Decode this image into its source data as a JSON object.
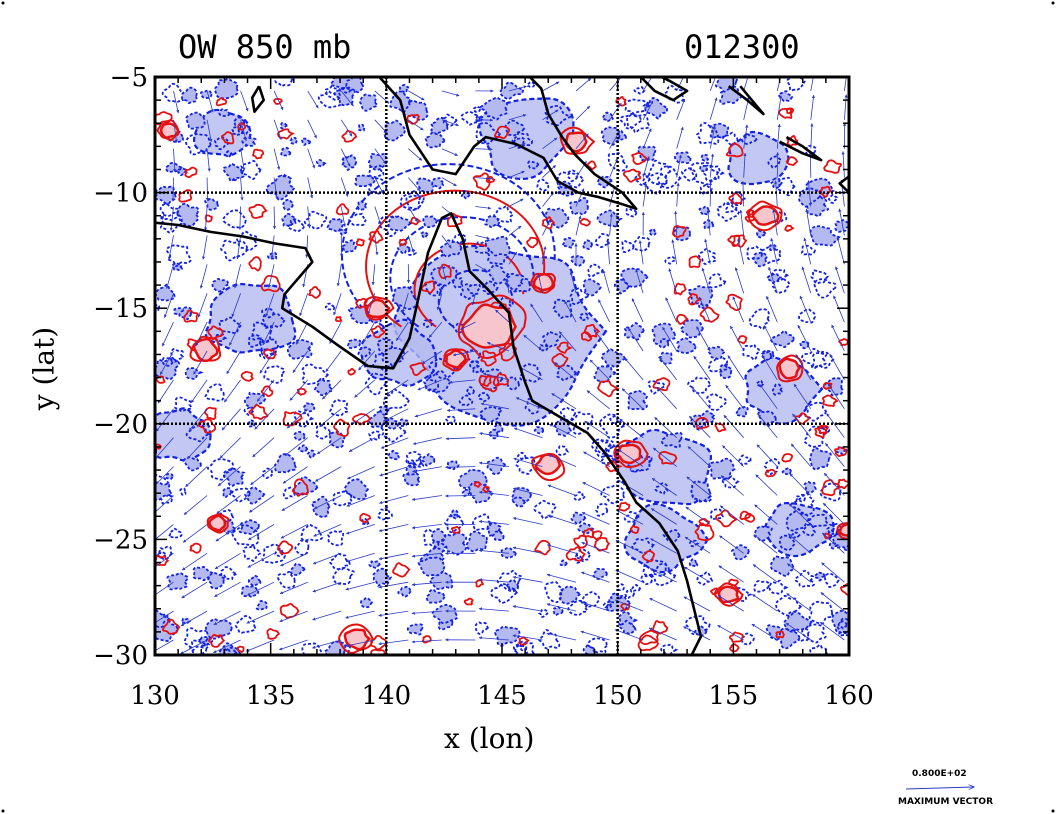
{
  "chart_data": {
    "type": "map",
    "title_left": "OW 850 mb",
    "title_right": "012300",
    "xlabel": "x (lon)",
    "ylabel": "y (lat)",
    "xlim": [
      130,
      160
    ],
    "ylim": [
      -30,
      -5
    ],
    "x_ticks": [
      "130",
      "135",
      "140",
      "145",
      "150",
      "155",
      "160"
    ],
    "y_ticks": [
      "−5",
      "−10",
      "−15",
      "−20",
      "−25",
      "−30"
    ],
    "grid_lines": {
      "lon": [
        140,
        150
      ],
      "lat": [
        -10,
        -20
      ]
    },
    "vector_key": {
      "value_label": "0.800E+02",
      "caption": "MAXIMUM VECTOR"
    },
    "colors": {
      "negative_fill": "#b4b9f0",
      "negative_contour": "#1020e6",
      "positive_fill": "#f6c6cc",
      "positive_contour": "#e61010",
      "coastline": "#000000",
      "vectors": "#2a3ac8"
    },
    "features": {
      "cyclone_center": {
        "lon": 144.5,
        "lat": -15.8
      },
      "positive_cells": [
        {
          "lon": 144.5,
          "lat": -15.8,
          "r": 1.1
        },
        {
          "lon": 148.2,
          "lat": -7.8,
          "r": 0.5
        },
        {
          "lon": 139.6,
          "lat": -15.0,
          "r": 0.45
        },
        {
          "lon": 132.2,
          "lat": -16.8,
          "r": 0.5
        },
        {
          "lon": 130.6,
          "lat": -7.3,
          "r": 0.35
        },
        {
          "lon": 156.4,
          "lat": -11.0,
          "r": 0.5
        },
        {
          "lon": 157.4,
          "lat": -17.6,
          "r": 0.45
        },
        {
          "lon": 150.5,
          "lat": -21.3,
          "r": 0.5
        },
        {
          "lon": 147.0,
          "lat": -21.8,
          "r": 0.5
        },
        {
          "lon": 154.8,
          "lat": -27.4,
          "r": 0.4
        },
        {
          "lon": 143.0,
          "lat": -17.2,
          "r": 0.4
        },
        {
          "lon": 146.8,
          "lat": -13.9,
          "r": 0.4
        },
        {
          "lon": 138.7,
          "lat": -29.3,
          "r": 0.5
        },
        {
          "lon": 132.7,
          "lat": -24.3,
          "r": 0.35
        },
        {
          "lon": 159.9,
          "lat": -24.6,
          "r": 0.3
        }
      ],
      "negative_cells": [
        {
          "lon": 145.0,
          "lat": -16.0,
          "r": 4.2
        },
        {
          "lon": 146.0,
          "lat": -7.5,
          "r": 2.0
        },
        {
          "lon": 152.0,
          "lat": -22.0,
          "r": 2.0
        },
        {
          "lon": 157.0,
          "lat": -18.5,
          "r": 1.6
        },
        {
          "lon": 134.0,
          "lat": -15.5,
          "r": 2.0
        },
        {
          "lon": 140.5,
          "lat": -17.0,
          "r": 1.6
        },
        {
          "lon": 152.0,
          "lat": -25.0,
          "r": 1.6
        },
        {
          "lon": 131.0,
          "lat": -20.5,
          "r": 1.3
        },
        {
          "lon": 158.0,
          "lat": -24.5,
          "r": 1.4
        },
        {
          "lon": 156.0,
          "lat": -8.5,
          "r": 1.3
        },
        {
          "lon": 133.0,
          "lat": -7.5,
          "r": 1.2
        }
      ],
      "coastlines": [
        [
          [
            130,
            -11.3
          ],
          [
            131,
            -11.4
          ],
          [
            132.4,
            -11.7
          ],
          [
            133.8,
            -11.9
          ],
          [
            135.2,
            -12.2
          ],
          [
            136.5,
            -12.4
          ],
          [
            136.8,
            -13.0
          ],
          [
            135.6,
            -14.4
          ],
          [
            135.5,
            -15.0
          ],
          [
            136.8,
            -15.8
          ],
          [
            137.9,
            -16.6
          ],
          [
            139.2,
            -17.5
          ],
          [
            140.3,
            -17.6
          ],
          [
            141.0,
            -16.3
          ],
          [
            141.4,
            -14.5
          ],
          [
            141.8,
            -12.6
          ],
          [
            142.4,
            -11.1
          ],
          [
            142.8,
            -10.9
          ],
          [
            143.3,
            -12.0
          ],
          [
            143.6,
            -13.4
          ],
          [
            144.4,
            -14.2
          ],
          [
            145.3,
            -15.2
          ],
          [
            145.5,
            -16.7
          ],
          [
            146.0,
            -18.2
          ],
          [
            146.3,
            -19.0
          ],
          [
            147.5,
            -19.7
          ],
          [
            148.7,
            -20.4
          ],
          [
            149.4,
            -21.2
          ],
          [
            150.3,
            -22.5
          ],
          [
            150.8,
            -23.4
          ],
          [
            151.8,
            -24.3
          ],
          [
            152.6,
            -25.5
          ],
          [
            153.0,
            -26.8
          ],
          [
            153.3,
            -28.0
          ],
          [
            153.6,
            -29.2
          ],
          [
            153.2,
            -30
          ]
        ],
        [
          [
            139.7,
            -5
          ],
          [
            140.6,
            -6.0
          ],
          [
            141.0,
            -7.5
          ],
          [
            142.0,
            -9.0
          ],
          [
            143.0,
            -9.2
          ],
          [
            143.8,
            -8.0
          ],
          [
            144.3,
            -7.6
          ],
          [
            145.6,
            -7.9
          ],
          [
            146.8,
            -8.5
          ],
          [
            147.4,
            -9.5
          ],
          [
            148.3,
            -10.0
          ],
          [
            149.2,
            -10.2
          ],
          [
            150.2,
            -10.5
          ],
          [
            150.8,
            -10.7
          ],
          [
            150.2,
            -10.0
          ],
          [
            149.0,
            -9.2
          ],
          [
            148.2,
            -8.4
          ],
          [
            147.6,
            -7.6
          ],
          [
            147.0,
            -6.6
          ],
          [
            146.7,
            -5.5
          ],
          [
            146.2,
            -5
          ]
        ],
        [
          [
            151.0,
            -5
          ],
          [
            151.6,
            -5.6
          ],
          [
            152.4,
            -6.0
          ],
          [
            153.0,
            -5.6
          ],
          [
            152.3,
            -5.2
          ],
          [
            151.9,
            -5
          ]
        ],
        [
          [
            154.8,
            -5.4
          ],
          [
            155.6,
            -6.0
          ],
          [
            156.3,
            -6.6
          ],
          [
            155.8,
            -6.0
          ],
          [
            155.3,
            -5.4
          ]
        ],
        [
          [
            157.0,
            -7.8
          ],
          [
            158.0,
            -8.3
          ],
          [
            158.8,
            -8.6
          ],
          [
            158.0,
            -8.0
          ],
          [
            157.3,
            -7.6
          ]
        ],
        [
          [
            160,
            -9.3
          ],
          [
            159.6,
            -9.6
          ],
          [
            160,
            -10.0
          ]
        ],
        [
          [
            134.5,
            -5.4
          ],
          [
            134.7,
            -6.0
          ],
          [
            134.3,
            -6.5
          ],
          [
            134.2,
            -5.9
          ],
          [
            134.5,
            -5.4
          ]
        ]
      ]
    }
  }
}
